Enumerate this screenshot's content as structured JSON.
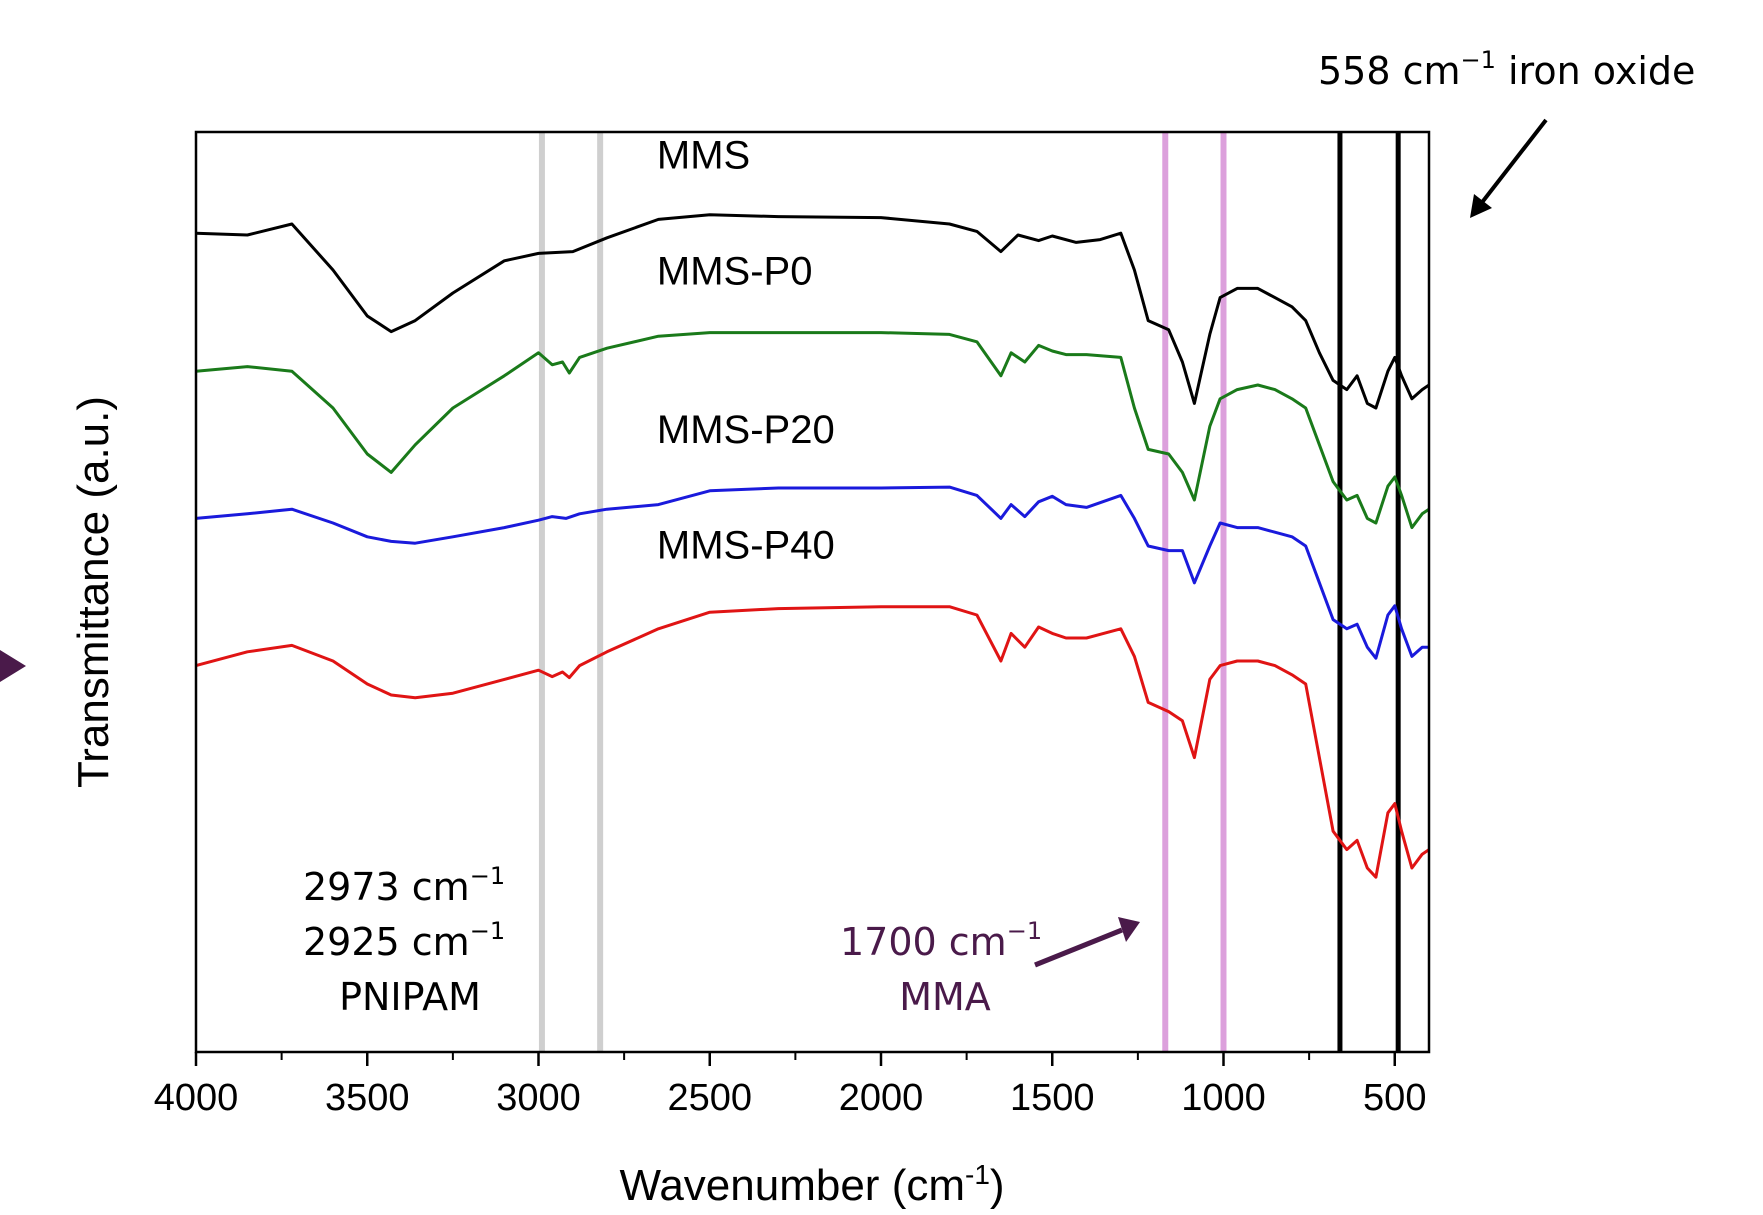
{
  "chart_data": {
    "type": "line",
    "xlabel": "Wavenumber (cm",
    "xlabel_sup": "-1",
    "xlabel_tail": ")",
    "ylabel": "Transmittance (a.u.)",
    "xlim": [
      4000,
      400
    ],
    "x_reversed": true,
    "xticks": [
      4000,
      3500,
      3000,
      2500,
      2000,
      1500,
      1000,
      500
    ],
    "xtick_labels": [
      "4000",
      "3500",
      "3000",
      "2500",
      "2000",
      "1500",
      "1000",
      "500"
    ],
    "y_ticks_shown": false,
    "grid": false,
    "series": [
      {
        "name": "MMS",
        "color": "#000000",
        "points": [
          [
            4000,
            0.11
          ],
          [
            3850,
            0.112
          ],
          [
            3720,
            0.1
          ],
          [
            3600,
            0.15
          ],
          [
            3500,
            0.2
          ],
          [
            3430,
            0.217
          ],
          [
            3360,
            0.205
          ],
          [
            3250,
            0.175
          ],
          [
            3100,
            0.14
          ],
          [
            3000,
            0.132
          ],
          [
            2900,
            0.13
          ],
          [
            2800,
            0.115
          ],
          [
            2650,
            0.095
          ],
          [
            2500,
            0.09
          ],
          [
            2300,
            0.092
          ],
          [
            2000,
            0.093
          ],
          [
            1800,
            0.1
          ],
          [
            1720,
            0.108
          ],
          [
            1650,
            0.13
          ],
          [
            1600,
            0.112
          ],
          [
            1540,
            0.118
          ],
          [
            1500,
            0.113
          ],
          [
            1430,
            0.12
          ],
          [
            1360,
            0.117
          ],
          [
            1300,
            0.11
          ],
          [
            1260,
            0.15
          ],
          [
            1220,
            0.205
          ],
          [
            1160,
            0.215
          ],
          [
            1120,
            0.25
          ],
          [
            1085,
            0.295
          ],
          [
            1040,
            0.22
          ],
          [
            1010,
            0.18
          ],
          [
            960,
            0.17
          ],
          [
            900,
            0.17
          ],
          [
            850,
            0.18
          ],
          [
            800,
            0.19
          ],
          [
            760,
            0.205
          ],
          [
            720,
            0.24
          ],
          [
            680,
            0.27
          ],
          [
            640,
            0.28
          ],
          [
            610,
            0.265
          ],
          [
            580,
            0.295
          ],
          [
            555,
            0.3
          ],
          [
            520,
            0.26
          ],
          [
            500,
            0.245
          ],
          [
            480,
            0.265
          ],
          [
            450,
            0.29
          ],
          [
            420,
            0.28
          ],
          [
            400,
            0.275
          ]
        ]
      },
      {
        "name": "MMS-P0",
        "color": "#1a7a1a",
        "points": [
          [
            4000,
            0.26
          ],
          [
            3850,
            0.255
          ],
          [
            3720,
            0.26
          ],
          [
            3600,
            0.3
          ],
          [
            3500,
            0.35
          ],
          [
            3430,
            0.37
          ],
          [
            3360,
            0.34
          ],
          [
            3250,
            0.3
          ],
          [
            3100,
            0.265
          ],
          [
            3000,
            0.24
          ],
          [
            2960,
            0.253
          ],
          [
            2930,
            0.25
          ],
          [
            2910,
            0.262
          ],
          [
            2880,
            0.245
          ],
          [
            2800,
            0.235
          ],
          [
            2650,
            0.222
          ],
          [
            2500,
            0.218
          ],
          [
            2300,
            0.218
          ],
          [
            2000,
            0.218
          ],
          [
            1800,
            0.22
          ],
          [
            1720,
            0.228
          ],
          [
            1650,
            0.265
          ],
          [
            1620,
            0.24
          ],
          [
            1580,
            0.25
          ],
          [
            1540,
            0.232
          ],
          [
            1500,
            0.238
          ],
          [
            1460,
            0.242
          ],
          [
            1400,
            0.242
          ],
          [
            1300,
            0.245
          ],
          [
            1260,
            0.3
          ],
          [
            1220,
            0.345
          ],
          [
            1160,
            0.35
          ],
          [
            1120,
            0.37
          ],
          [
            1085,
            0.4
          ],
          [
            1040,
            0.32
          ],
          [
            1010,
            0.29
          ],
          [
            960,
            0.28
          ],
          [
            900,
            0.275
          ],
          [
            850,
            0.28
          ],
          [
            800,
            0.29
          ],
          [
            760,
            0.3
          ],
          [
            720,
            0.34
          ],
          [
            680,
            0.38
          ],
          [
            640,
            0.4
          ],
          [
            610,
            0.395
          ],
          [
            580,
            0.42
          ],
          [
            555,
            0.425
          ],
          [
            520,
            0.385
          ],
          [
            500,
            0.375
          ],
          [
            480,
            0.395
          ],
          [
            450,
            0.43
          ],
          [
            420,
            0.415
          ],
          [
            400,
            0.41
          ]
        ]
      },
      {
        "name": "MMS-P20",
        "color": "#1a1adc",
        "points": [
          [
            4000,
            0.42
          ],
          [
            3850,
            0.415
          ],
          [
            3720,
            0.41
          ],
          [
            3600,
            0.425
          ],
          [
            3500,
            0.44
          ],
          [
            3430,
            0.445
          ],
          [
            3360,
            0.447
          ],
          [
            3250,
            0.44
          ],
          [
            3100,
            0.43
          ],
          [
            3000,
            0.422
          ],
          [
            2960,
            0.418
          ],
          [
            2920,
            0.42
          ],
          [
            2880,
            0.415
          ],
          [
            2800,
            0.41
          ],
          [
            2650,
            0.405
          ],
          [
            2500,
            0.39
          ],
          [
            2300,
            0.387
          ],
          [
            2000,
            0.387
          ],
          [
            1800,
            0.386
          ],
          [
            1720,
            0.395
          ],
          [
            1650,
            0.42
          ],
          [
            1620,
            0.405
          ],
          [
            1580,
            0.418
          ],
          [
            1540,
            0.402
          ],
          [
            1500,
            0.396
          ],
          [
            1460,
            0.405
          ],
          [
            1400,
            0.408
          ],
          [
            1300,
            0.395
          ],
          [
            1260,
            0.42
          ],
          [
            1220,
            0.45
          ],
          [
            1160,
            0.455
          ],
          [
            1120,
            0.455
          ],
          [
            1085,
            0.49
          ],
          [
            1040,
            0.45
          ],
          [
            1010,
            0.425
          ],
          [
            960,
            0.43
          ],
          [
            900,
            0.43
          ],
          [
            850,
            0.435
          ],
          [
            800,
            0.44
          ],
          [
            760,
            0.45
          ],
          [
            720,
            0.49
          ],
          [
            680,
            0.53
          ],
          [
            640,
            0.54
          ],
          [
            610,
            0.535
          ],
          [
            580,
            0.56
          ],
          [
            555,
            0.572
          ],
          [
            520,
            0.525
          ],
          [
            500,
            0.515
          ],
          [
            480,
            0.54
          ],
          [
            450,
            0.57
          ],
          [
            420,
            0.56
          ],
          [
            400,
            0.56
          ]
        ]
      },
      {
        "name": "MMS-P40",
        "color": "#e01414",
        "points": [
          [
            4000,
            0.58
          ],
          [
            3850,
            0.565
          ],
          [
            3720,
            0.558
          ],
          [
            3600,
            0.575
          ],
          [
            3500,
            0.6
          ],
          [
            3430,
            0.612
          ],
          [
            3360,
            0.615
          ],
          [
            3250,
            0.61
          ],
          [
            3100,
            0.595
          ],
          [
            3000,
            0.585
          ],
          [
            2960,
            0.592
          ],
          [
            2930,
            0.587
          ],
          [
            2910,
            0.593
          ],
          [
            2880,
            0.58
          ],
          [
            2800,
            0.565
          ],
          [
            2650,
            0.54
          ],
          [
            2500,
            0.522
          ],
          [
            2300,
            0.518
          ],
          [
            2000,
            0.516
          ],
          [
            1800,
            0.516
          ],
          [
            1720,
            0.525
          ],
          [
            1650,
            0.575
          ],
          [
            1620,
            0.545
          ],
          [
            1580,
            0.56
          ],
          [
            1540,
            0.538
          ],
          [
            1500,
            0.545
          ],
          [
            1460,
            0.55
          ],
          [
            1400,
            0.55
          ],
          [
            1300,
            0.54
          ],
          [
            1260,
            0.57
          ],
          [
            1220,
            0.62
          ],
          [
            1160,
            0.63
          ],
          [
            1120,
            0.64
          ],
          [
            1085,
            0.68
          ],
          [
            1040,
            0.595
          ],
          [
            1010,
            0.58
          ],
          [
            960,
            0.575
          ],
          [
            900,
            0.575
          ],
          [
            850,
            0.58
          ],
          [
            800,
            0.59
          ],
          [
            760,
            0.6
          ],
          [
            720,
            0.68
          ],
          [
            680,
            0.76
          ],
          [
            640,
            0.78
          ],
          [
            610,
            0.77
          ],
          [
            580,
            0.8
          ],
          [
            555,
            0.81
          ],
          [
            520,
            0.74
          ],
          [
            500,
            0.73
          ],
          [
            480,
            0.76
          ],
          [
            450,
            0.8
          ],
          [
            420,
            0.785
          ],
          [
            400,
            0.78
          ]
        ]
      }
    ],
    "series_labels": [
      {
        "text": "MMS",
        "x": 2450
      },
      {
        "text": "MMS-P0",
        "x": 2450
      },
      {
        "text": "MMS-P20",
        "x": 2450
      },
      {
        "text": "MMS-P40",
        "x": 2450
      }
    ],
    "reference_lines": [
      {
        "x": 2990,
        "color": "#cfcfcf",
        "group": "PNIPAM"
      },
      {
        "x": 2820,
        "color": "#cfcfcf",
        "group": "PNIPAM"
      },
      {
        "x": 1170,
        "color": "#dca0dc",
        "group": "MMA"
      },
      {
        "x": 1000,
        "color": "#dca0dc",
        "group": "MMA"
      },
      {
        "x": 660,
        "color": "#000000",
        "group": "iron oxide"
      },
      {
        "x": 490,
        "color": "#000000",
        "group": "iron oxide"
      }
    ],
    "annotations": {
      "iron_oxide": {
        "text": "558 cm",
        "sup": "−1",
        "tail": " iron oxide",
        "color": "#000000"
      },
      "pnipam_1": {
        "text": "2973 cm",
        "sup": "−1",
        "color": "#000000"
      },
      "pnipam_2": {
        "text": "2925 cm",
        "sup": "−1",
        "color": "#000000"
      },
      "pnipam_label": {
        "text": "PNIPAM",
        "color": "#000000"
      },
      "mma_1": {
        "text": "1700 cm",
        "sup": "−1",
        "color": "#4a1a4a"
      },
      "mma_label": {
        "text": "MMA",
        "color": "#4a1a4a"
      }
    },
    "edge_arrow_color": "#4a1a4a"
  }
}
